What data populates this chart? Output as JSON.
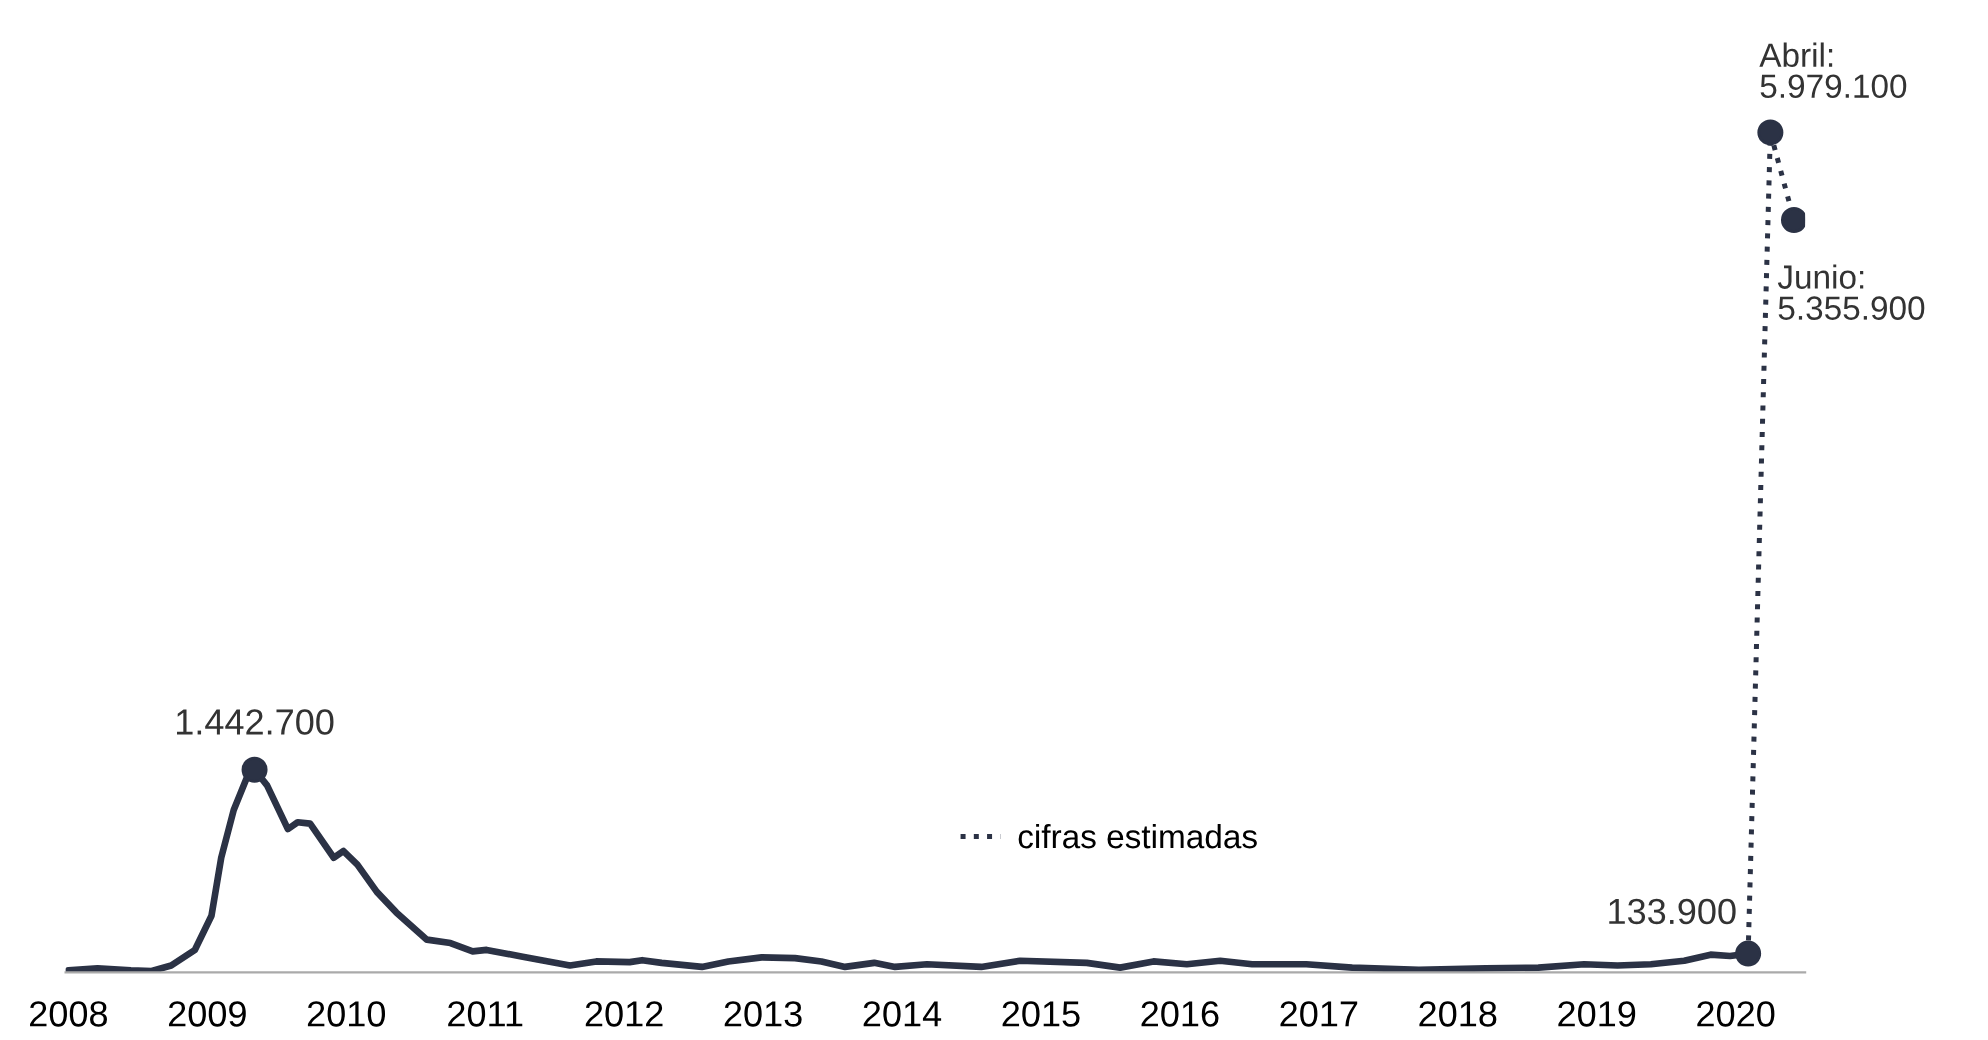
{
  "chart_data": {
    "type": "line",
    "xlim": [
      2007.98,
      2020.5
    ],
    "xticks": [
      2008,
      2009,
      2010,
      2011,
      2012,
      2013,
      2014,
      2015,
      2016,
      2017,
      2018,
      2019,
      2020
    ],
    "grid": false,
    "legend": "bottom",
    "series": [
      {
        "color": "#2b3245",
        "line_style": "solid",
        "marker": "none",
        "x": [
          2008.0,
          2008.21,
          2008.45,
          2008.6,
          2008.74,
          2008.91,
          2009.03,
          2009.1,
          2009.19,
          2009.29,
          2009.34,
          2009.43,
          2009.58,
          2009.65,
          2009.74,
          2009.91,
          2009.98,
          2010.08,
          2010.22,
          2010.36,
          2010.58,
          2010.75,
          2010.91,
          2011.01,
          2011.27,
          2011.61,
          2011.8,
          2012.04,
          2012.13,
          2012.27,
          2012.56,
          2012.75,
          2012.99,
          2013.23,
          2013.42,
          2013.59,
          2013.8,
          2013.95,
          2014.18,
          2014.57,
          2014.85,
          2015.33,
          2015.57,
          2015.81,
          2016.05,
          2016.29,
          2016.52,
          2016.91,
          2017.24,
          2017.72,
          2018.2,
          2018.58,
          2018.91,
          2019.15,
          2019.39,
          2019.63,
          2019.82,
          2019.96,
          2020.09
        ],
        "values": [
          15000,
          29000,
          15000,
          10000,
          49000,
          160000,
          403000,
          816000,
          1156000,
          1399000,
          1442700,
          1331000,
          1020000,
          1069000,
          1059000,
          816000,
          864000,
          767000,
          573000,
          427000,
          233000,
          209000,
          150000,
          160000,
          112000,
          49000,
          78000,
          73000,
          87000,
          68000,
          39000,
          78000,
          107000,
          102000,
          78000,
          39000,
          68000,
          39000,
          58000,
          39000,
          83000,
          68000,
          34000,
          78000,
          58000,
          83000,
          58000,
          58000,
          34000,
          19000,
          29000,
          34000,
          58000,
          49000,
          58000,
          83000,
          126000,
          117000,
          133900
        ]
      },
      {
        "name": "cifras estimadas",
        "color": "#2b3245",
        "line_style": "dotted",
        "marker": "none",
        "x": [
          2020.09,
          2020.25,
          2020.42
        ],
        "values": [
          133900,
          5979100,
          5355900
        ]
      },
      {
        "type": "scatter",
        "color": "#2b3245",
        "marker": "circle",
        "x": [
          2009.34,
          2020.09,
          2020.25,
          2020.42
        ],
        "values": [
          1442700,
          133900,
          5979100,
          5355900
        ],
        "value_labels": [
          "1.442.700",
          "133.900",
          "Abril:\n5.979.100",
          "Junio:\n5.355.900"
        ]
      }
    ]
  }
}
